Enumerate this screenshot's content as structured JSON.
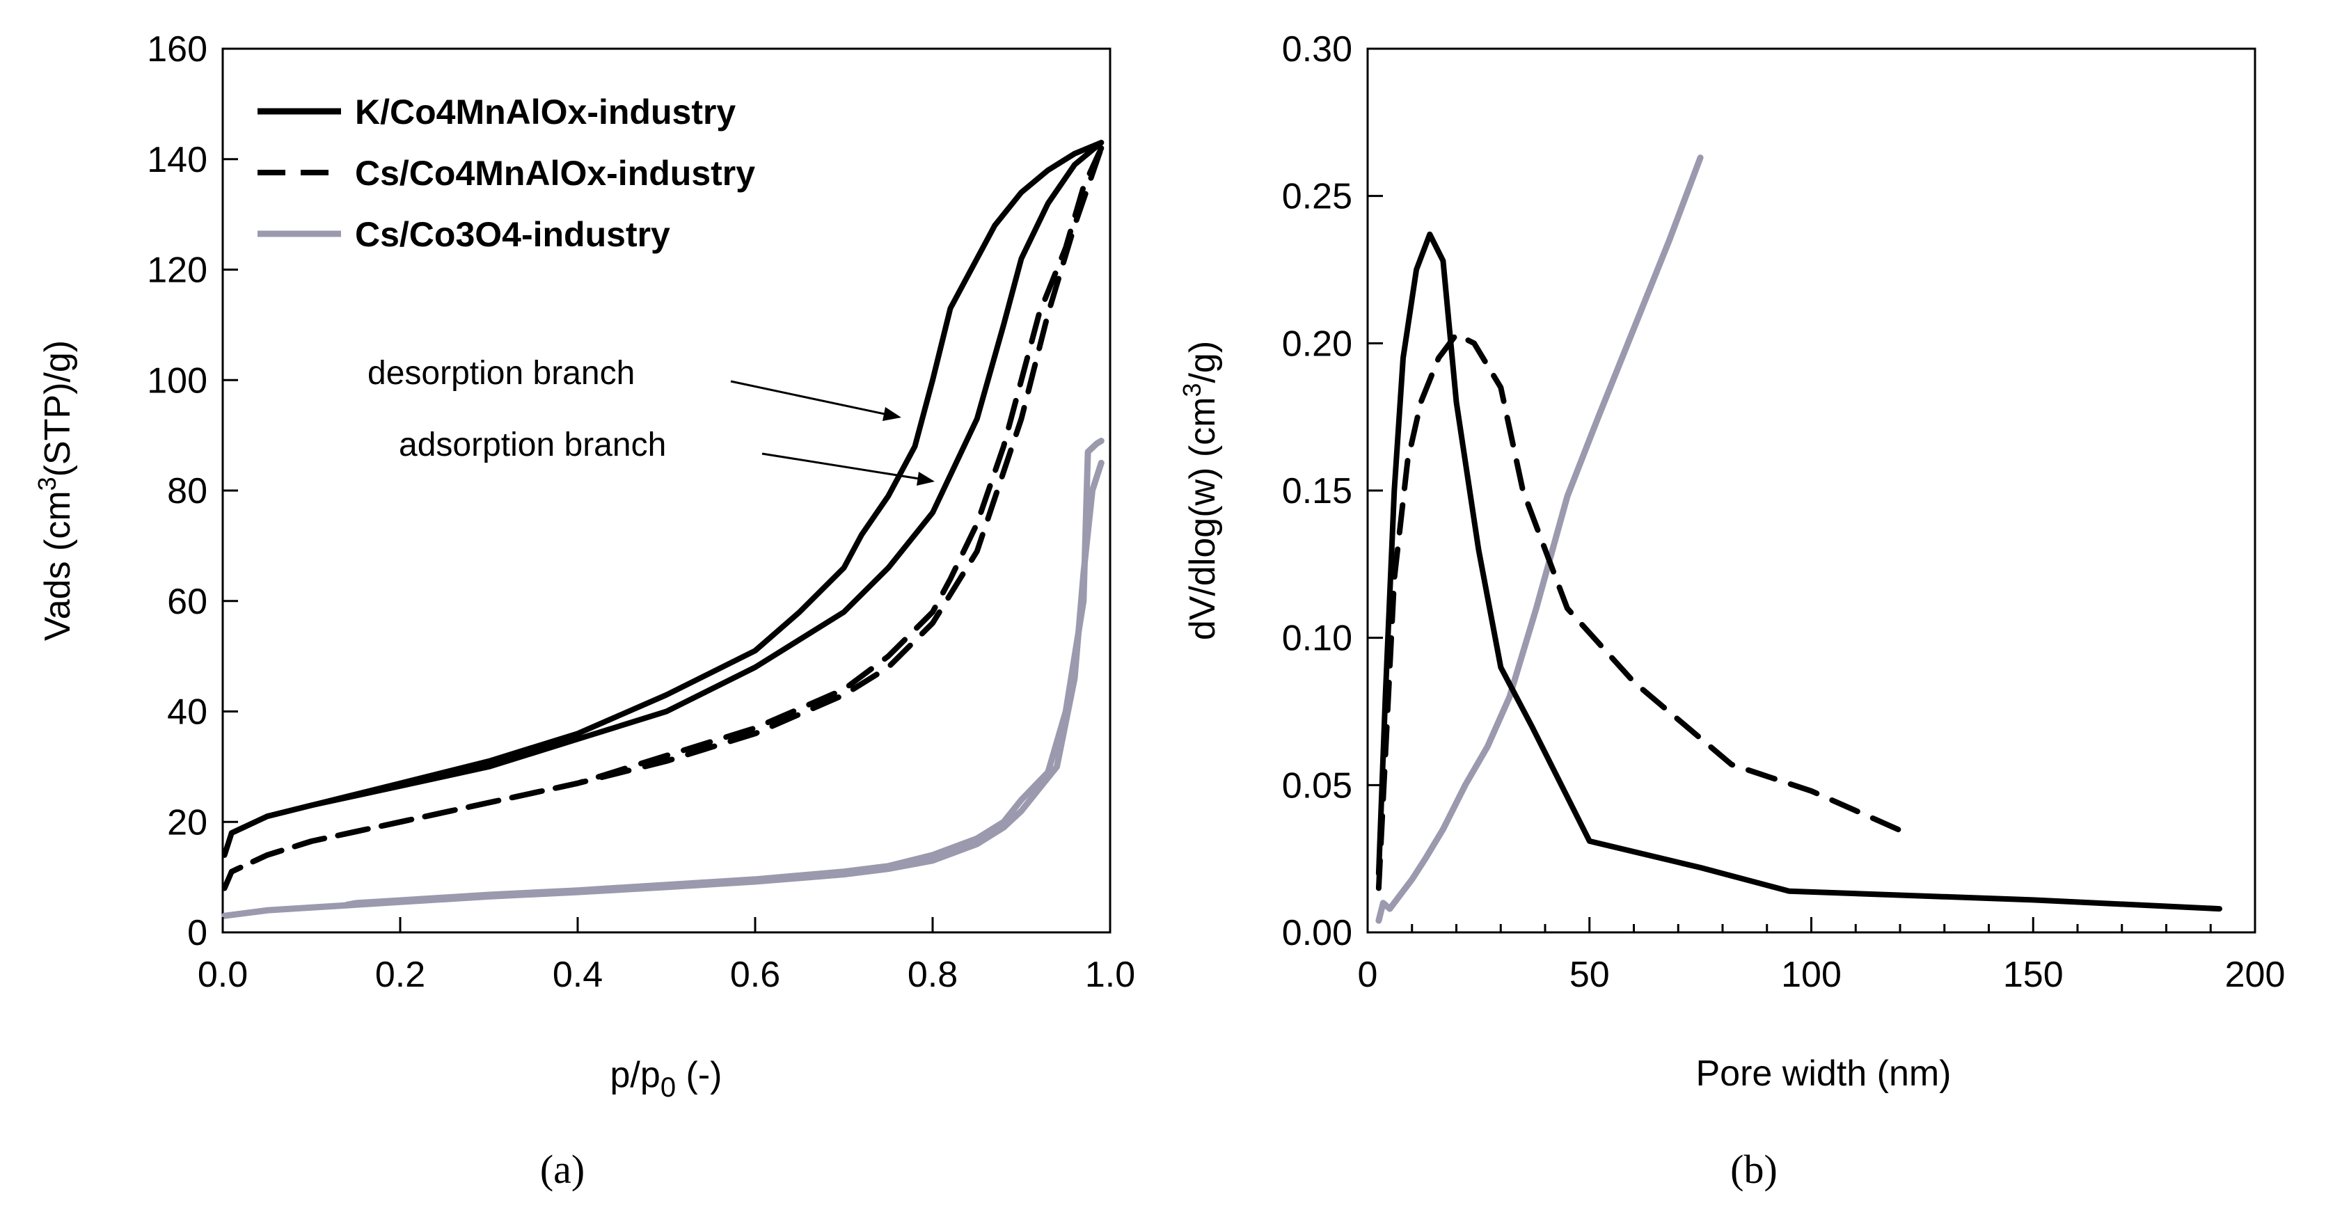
{
  "chart_data": [
    {
      "type": "line",
      "panel": "a",
      "xlabel": "p/p0 (-)",
      "ylabel": "Vads (cm3(STP)/g)",
      "xlim": [
        0,
        1.0
      ],
      "ylim": [
        0,
        160
      ],
      "xticks": [
        "0.0",
        "0.2",
        "0.4",
        "0.6",
        "0.8",
        "1.0"
      ],
      "yticks": [
        "0",
        "20",
        "40",
        "60",
        "80",
        "100",
        "120",
        "140",
        "160"
      ],
      "legend_position": "top-left",
      "series": [
        {
          "name": "K/Co4MnAlOx-industry",
          "color": "#000000",
          "style": "solid",
          "adsorption": [
            [
              0.002,
              14
            ],
            [
              0.01,
              18
            ],
            [
              0.05,
              21
            ],
            [
              0.1,
              23
            ],
            [
              0.2,
              26.5
            ],
            [
              0.3,
              30
            ],
            [
              0.4,
              35
            ],
            [
              0.5,
              40
            ],
            [
              0.6,
              48
            ],
            [
              0.7,
              58
            ],
            [
              0.75,
              66
            ],
            [
              0.8,
              76
            ],
            [
              0.85,
              93
            ],
            [
              0.88,
              110
            ],
            [
              0.9,
              122
            ],
            [
              0.93,
              132
            ],
            [
              0.96,
              139
            ],
            [
              0.99,
              143
            ]
          ],
          "desorption": [
            [
              0.99,
              143
            ],
            [
              0.96,
              141
            ],
            [
              0.93,
              138
            ],
            [
              0.9,
              134
            ],
            [
              0.87,
              128
            ],
            [
              0.85,
              122
            ],
            [
              0.82,
              113
            ],
            [
              0.8,
              100
            ],
            [
              0.78,
              88
            ],
            [
              0.75,
              79
            ],
            [
              0.72,
              72
            ],
            [
              0.7,
              66
            ],
            [
              0.65,
              58
            ],
            [
              0.6,
              51
            ],
            [
              0.55,
              47
            ],
            [
              0.5,
              43
            ],
            [
              0.4,
              36
            ],
            [
              0.3,
              31
            ],
            [
              0.2,
              27
            ],
            [
              0.1,
              23
            ],
            [
              0.05,
              21
            ],
            [
              0.01,
              18
            ]
          ]
        },
        {
          "name": "Cs/Co4MnAlOx-industry",
          "color": "#000000",
          "style": "dashed",
          "adsorption": [
            [
              0.002,
              8
            ],
            [
              0.01,
              11
            ],
            [
              0.05,
              14
            ],
            [
              0.1,
              16.5
            ],
            [
              0.2,
              20
            ],
            [
              0.3,
              23.5
            ],
            [
              0.4,
              27
            ],
            [
              0.5,
              31
            ],
            [
              0.6,
              36
            ],
            [
              0.7,
              43
            ],
            [
              0.75,
              48
            ],
            [
              0.8,
              56
            ],
            [
              0.85,
              69
            ],
            [
              0.9,
              93
            ],
            [
              0.93,
              112
            ],
            [
              0.96,
              128
            ],
            [
              0.99,
              142
            ]
          ],
          "desorption": [
            [
              0.99,
              142
            ],
            [
              0.97,
              135
            ],
            [
              0.95,
              124
            ],
            [
              0.92,
              112
            ],
            [
              0.9,
              100
            ],
            [
              0.88,
              88
            ],
            [
              0.85,
              74
            ],
            [
              0.82,
              64
            ],
            [
              0.8,
              58
            ],
            [
              0.75,
              50
            ],
            [
              0.7,
              44
            ],
            [
              0.6,
              37
            ],
            [
              0.5,
              32
            ],
            [
              0.4,
              27
            ],
            [
              0.3,
              23.5
            ],
            [
              0.2,
              20
            ],
            [
              0.1,
              16.5
            ],
            [
              0.05,
              14
            ],
            [
              0.01,
              11
            ]
          ]
        },
        {
          "name": "Cs/Co3O4-industry",
          "color": "#9b99ad",
          "style": "solid",
          "adsorption": [
            [
              0.002,
              3
            ],
            [
              0.05,
              4
            ],
            [
              0.1,
              4.5
            ],
            [
              0.2,
              5.5
            ],
            [
              0.3,
              6.5
            ],
            [
              0.4,
              7.3
            ],
            [
              0.5,
              8.2
            ],
            [
              0.6,
              9.2
            ],
            [
              0.7,
              10.5
            ],
            [
              0.75,
              11.5
            ],
            [
              0.8,
              13
            ],
            [
              0.85,
              16
            ],
            [
              0.88,
              19
            ],
            [
              0.9,
              22
            ],
            [
              0.92,
              26
            ],
            [
              0.94,
              30
            ],
            [
              0.96,
              46
            ],
            [
              0.97,
              65
            ],
            [
              0.98,
              80
            ],
            [
              0.99,
              85
            ]
          ],
          "desorption": [
            [
              0.99,
              89
            ],
            [
              0.985,
              88.5
            ],
            [
              0.975,
              87
            ],
            [
              0.97,
              60
            ],
            [
              0.96,
              50
            ],
            [
              0.95,
              40
            ],
            [
              0.93,
              29
            ],
            [
              0.9,
              24
            ],
            [
              0.88,
              20
            ],
            [
              0.85,
              17
            ],
            [
              0.8,
              14
            ],
            [
              0.75,
              12
            ],
            [
              0.7,
              11
            ],
            [
              0.6,
              9.6
            ],
            [
              0.5,
              8.6
            ],
            [
              0.4,
              7.6
            ],
            [
              0.3,
              6.8
            ],
            [
              0.2,
              5.8
            ],
            [
              0.15,
              5.3
            ],
            [
              0.14,
              5
            ]
          ]
        }
      ],
      "annotations": [
        {
          "text": "desorption branch",
          "target": [
            0.77,
            93
          ]
        },
        {
          "text": "adsorption branch",
          "target": [
            0.81,
            80
          ]
        }
      ],
      "caption": "(a)"
    },
    {
      "type": "line",
      "panel": "b",
      "xlabel": "Pore width (nm)",
      "ylabel": "dV/dlog(w) (cm3/g)",
      "xlim": [
        0,
        200
      ],
      "ylim": [
        0,
        0.3
      ],
      "xticks": [
        "0",
        "50",
        "100",
        "150",
        "200"
      ],
      "yticks": [
        "0.00",
        "0.05",
        "0.10",
        "0.15",
        "0.20",
        "0.25",
        "0.30"
      ],
      "series": [
        {
          "name": "K/Co4MnAlOx-industry",
          "color": "#000000",
          "style": "solid",
          "points": [
            [
              2.5,
              0.02
            ],
            [
              4,
              0.08
            ],
            [
              6,
              0.15
            ],
            [
              8,
              0.195
            ],
            [
              11,
              0.225
            ],
            [
              14,
              0.237
            ],
            [
              17,
              0.228
            ],
            [
              20,
              0.18
            ],
            [
              25,
              0.13
            ],
            [
              30,
              0.09
            ],
            [
              37,
              0.07
            ],
            [
              50,
              0.031
            ],
            [
              75,
              0.022
            ],
            [
              95,
              0.014
            ],
            [
              150,
              0.011
            ],
            [
              192,
              0.008
            ]
          ]
        },
        {
          "name": "Cs/Co4MnAlOx-industry",
          "color": "#000000",
          "style": "dashed",
          "points": [
            [
              2.5,
              0.015
            ],
            [
              4,
              0.06
            ],
            [
              6,
              0.12
            ],
            [
              9,
              0.16
            ],
            [
              12,
              0.18
            ],
            [
              16,
              0.195
            ],
            [
              20,
              0.203
            ],
            [
              24,
              0.2
            ],
            [
              30,
              0.185
            ],
            [
              35,
              0.15
            ],
            [
              45,
              0.11
            ],
            [
              60,
              0.085
            ],
            [
              82,
              0.057
            ],
            [
              100,
              0.048
            ],
            [
              121,
              0.034
            ]
          ]
        },
        {
          "name": "Cs/Co3O4-industry",
          "color": "#9b99ad",
          "style": "solid",
          "points": [
            [
              2.5,
              0.004
            ],
            [
              3.5,
              0.01
            ],
            [
              5,
              0.008
            ],
            [
              7,
              0.012
            ],
            [
              10,
              0.018
            ],
            [
              13,
              0.025
            ],
            [
              17,
              0.035
            ],
            [
              22,
              0.05
            ],
            [
              27,
              0.063
            ],
            [
              32,
              0.08
            ],
            [
              38,
              0.11
            ],
            [
              45,
              0.148
            ],
            [
              52,
              0.175
            ],
            [
              60,
              0.205
            ],
            [
              68,
              0.235
            ],
            [
              75,
              0.263
            ]
          ]
        }
      ],
      "caption": "(b)"
    }
  ]
}
